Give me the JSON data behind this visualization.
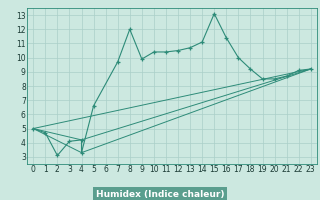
{
  "xlabel": "Humidex (Indice chaleur)",
  "bg_color": "#cce8e0",
  "line_color": "#2d8b78",
  "grid_color": "#aacfc8",
  "footer_color": "#5a9e8e",
  "xlim": [
    -0.5,
    23.5
  ],
  "ylim": [
    2.5,
    13.5
  ],
  "xticks": [
    0,
    1,
    2,
    3,
    4,
    5,
    6,
    7,
    8,
    9,
    10,
    11,
    12,
    13,
    14,
    15,
    16,
    17,
    18,
    19,
    20,
    21,
    22,
    23
  ],
  "yticks": [
    3,
    4,
    5,
    6,
    7,
    8,
    9,
    10,
    11,
    12,
    13
  ],
  "line1_x": [
    0,
    1,
    2,
    3,
    4,
    4,
    5,
    7,
    8,
    9,
    10,
    11,
    12,
    13,
    14,
    15,
    16,
    17,
    18,
    19,
    20,
    21,
    22,
    23
  ],
  "line1_y": [
    5.0,
    4.7,
    3.1,
    4.1,
    4.2,
    3.3,
    6.6,
    9.7,
    12.0,
    9.9,
    10.4,
    10.4,
    10.5,
    10.7,
    11.1,
    13.1,
    11.4,
    10.0,
    9.2,
    8.5,
    8.5,
    8.7,
    9.1,
    9.2
  ],
  "line2_x": [
    0,
    4,
    23
  ],
  "line2_y": [
    5.0,
    4.2,
    9.2
  ],
  "line3_x": [
    0,
    4,
    23
  ],
  "line3_y": [
    5.0,
    3.3,
    9.2
  ],
  "line4_x": [
    0,
    23
  ],
  "line4_y": [
    5.0,
    9.2
  ],
  "tick_fontsize": 5.5,
  "xlabel_fontsize": 6.5
}
